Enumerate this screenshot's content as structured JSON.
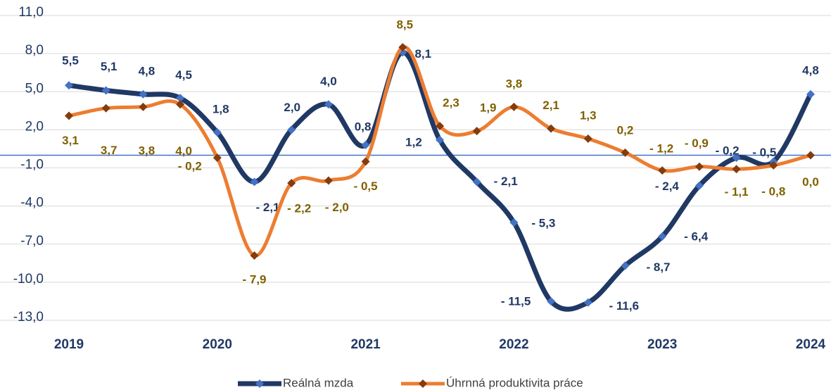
{
  "chart_data": {
    "type": "line",
    "categories": [
      "2019",
      null,
      null,
      null,
      "2020",
      null,
      null,
      null,
      "2021",
      null,
      null,
      null,
      "2022",
      null,
      null,
      null,
      "2023",
      null,
      null,
      null,
      "2024"
    ],
    "series": [
      {
        "name": "Reálná mzda",
        "color": "#203864",
        "marker_color": "#4472c4",
        "label_color": "#203864",
        "values": [
          5.5,
          5.1,
          4.8,
          4.5,
          1.8,
          -2.1,
          2.0,
          4.0,
          0.8,
          8.1,
          1.2,
          -2.1,
          -5.3,
          -11.5,
          -11.6,
          -8.7,
          -6.4,
          -2.4,
          -0.2,
          -0.5,
          4.8
        ],
        "value_labels": [
          "5,5",
          "5,1",
          "4,8",
          "4,5",
          "1,8",
          "- 2,1",
          "2,0",
          "4,0",
          "0,8",
          "8,1",
          "1,2",
          "- 2,1",
          "- 5,3",
          "- 11,5",
          "- 11,6",
          "- 8,7",
          "- 6,4",
          "- 2,4",
          "- 0,2",
          "- 0,5",
          "4,8"
        ]
      },
      {
        "name": "Úhrnná produktivita práce",
        "color": "#ed7d31",
        "marker_color": "#843c0c",
        "label_color": "#7f6000",
        "values": [
          3.1,
          3.7,
          3.8,
          4.0,
          -0.2,
          -7.9,
          -2.2,
          -2.0,
          -0.5,
          8.5,
          2.3,
          1.9,
          3.8,
          2.1,
          1.3,
          0.2,
          -1.2,
          -0.9,
          -1.1,
          -0.8,
          0.0
        ],
        "value_labels": [
          "3,1",
          "3,7",
          "3,8",
          "4,0",
          "- 0,2",
          "- 7,9",
          "- 2,2",
          "- 2,0",
          "- 0,5",
          "8,5",
          "2,3",
          "1,9",
          "3,8",
          "2,1",
          "1,3",
          "0,2",
          "- 1,2",
          "- 0,9",
          "- 1,1",
          "- 0,8",
          "0,0"
        ]
      }
    ],
    "ylim": [
      -13,
      11
    ],
    "yticks": [
      {
        "value": -13,
        "label": "-13,0"
      },
      {
        "value": -10,
        "label": "-10,0"
      },
      {
        "value": -7,
        "label": "-7,0"
      },
      {
        "value": -4,
        "label": "-4,0"
      },
      {
        "value": -1,
        "label": "-1,0"
      },
      {
        "value": 2,
        "label": "2,0"
      },
      {
        "value": 5,
        "label": "5,0"
      },
      {
        "value": 8,
        "label": "8,0"
      },
      {
        "value": 11,
        "label": "11,0"
      }
    ],
    "grid": true,
    "zero_line_color": "#4472c4",
    "legend": "bottom"
  }
}
